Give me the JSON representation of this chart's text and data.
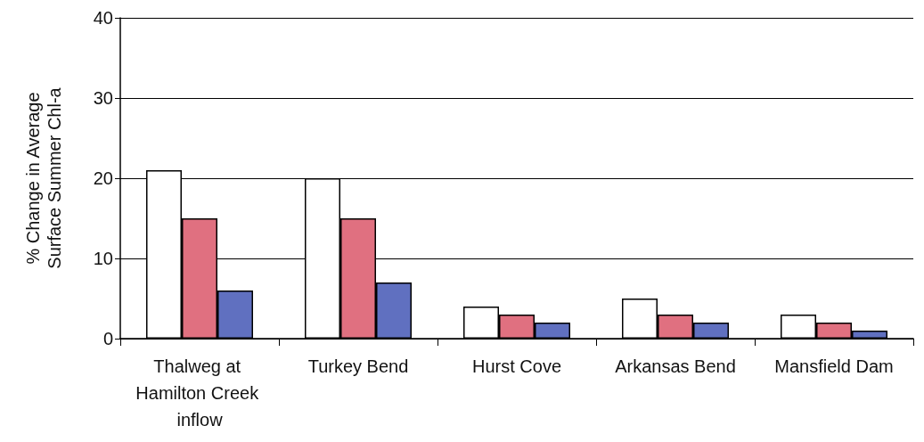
{
  "chart_data": {
    "type": "bar",
    "ylabel": "% Change in Average Surface Summer Chl-a",
    "categories": [
      "Thalweg at Hamilton Creek inflow",
      "Turkey Bend",
      "Hurst Cove",
      "Arkansas Bend",
      "Mansfield Dam"
    ],
    "series": [
      {
        "color": "#ffffff",
        "values": [
          21,
          20,
          4,
          5,
          3
        ]
      },
      {
        "color": "#e07080",
        "values": [
          15,
          15,
          3,
          3,
          2
        ]
      },
      {
        "color": "#6070c0",
        "values": [
          6,
          7,
          2,
          2,
          1
        ]
      }
    ],
    "ylim": [
      0,
      40
    ],
    "yticks": [
      0,
      10,
      20,
      30,
      40
    ],
    "grid": "y"
  }
}
